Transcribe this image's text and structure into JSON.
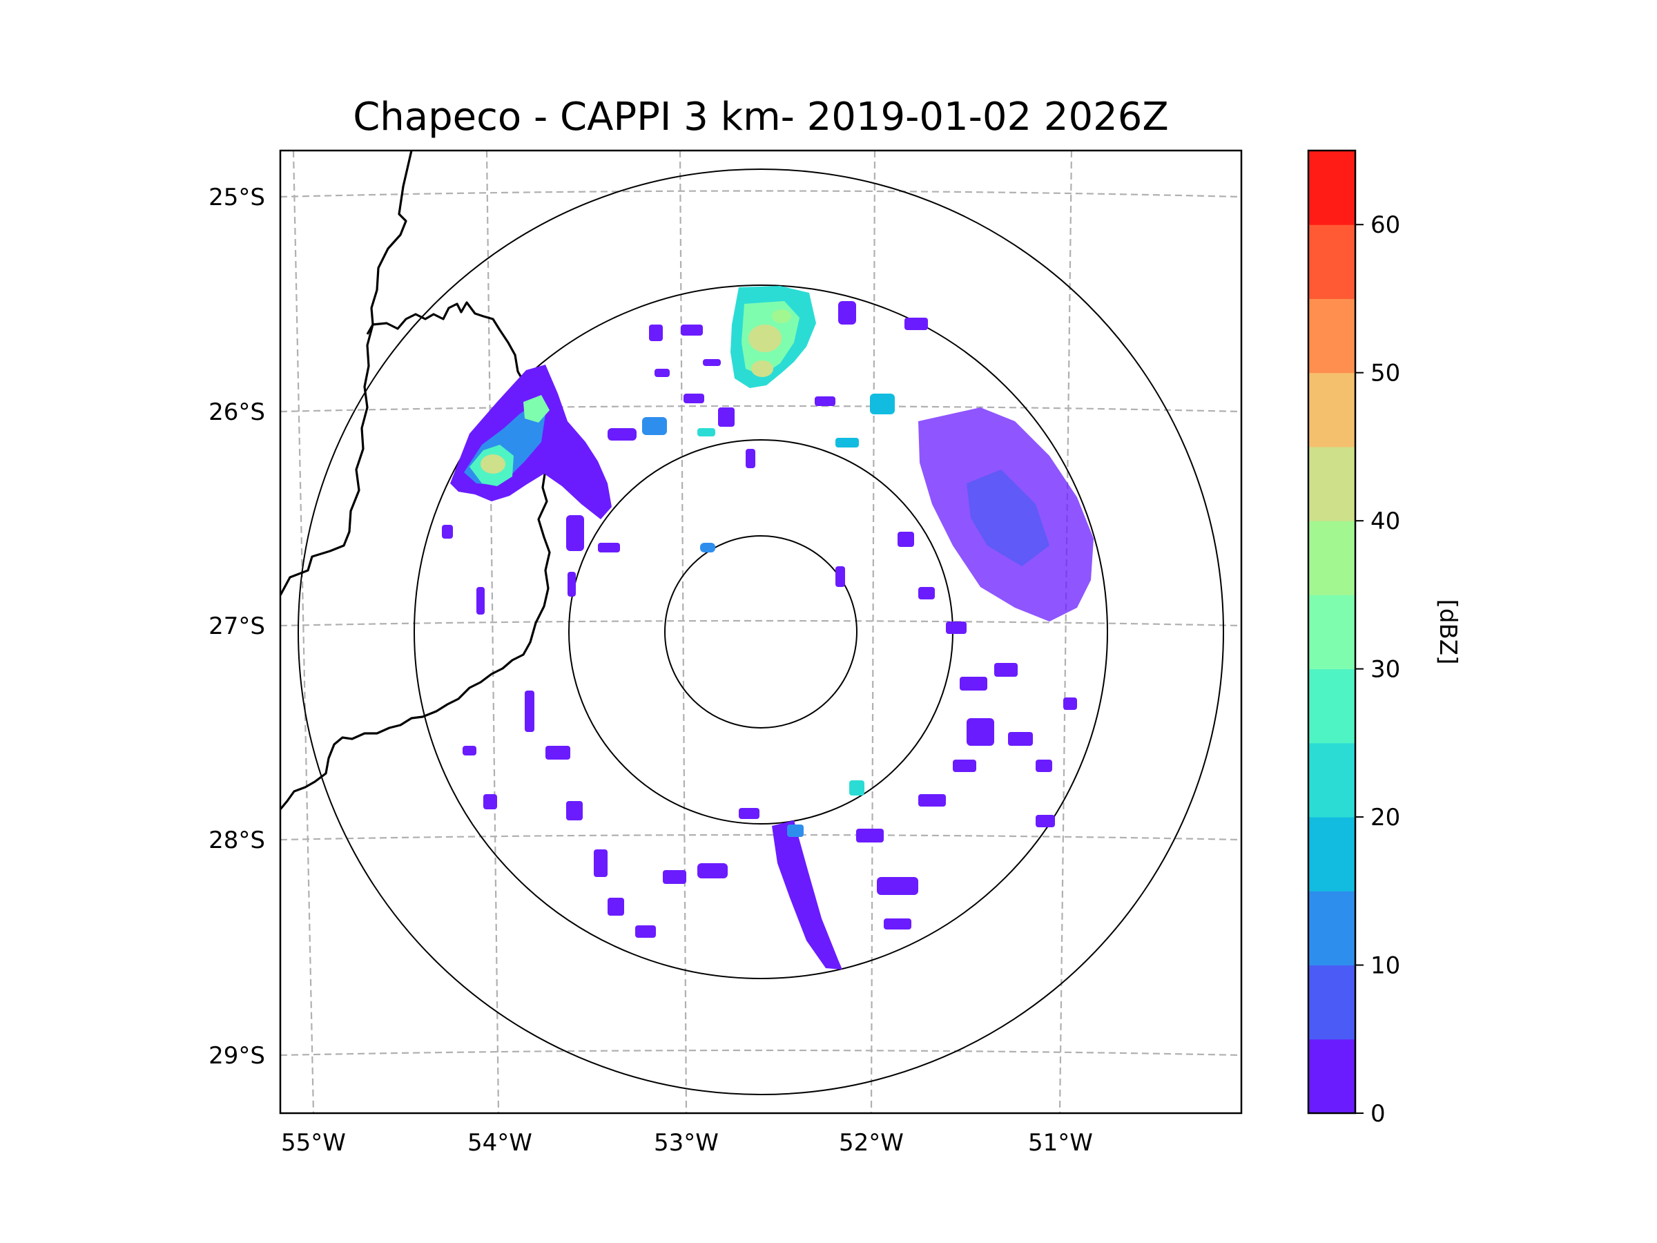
{
  "title": "Chapeco - CAPPI 3 km- 2019-01-02 2026Z",
  "map": {
    "lat_ticks": [
      "25°S",
      "26°S",
      "27°S",
      "28°S",
      "29°S"
    ],
    "lon_ticks": [
      "55°W",
      "54°W",
      "53°W",
      "52°W",
      "51°W"
    ],
    "colors": {
      "frame": "#000000",
      "gridline": "#b0b0b0",
      "range_ring": "#000000",
      "border": "#000000"
    }
  },
  "colorbar": {
    "label": "[dBZ]",
    "ticks": [
      "0",
      "10",
      "20",
      "30",
      "40",
      "50",
      "60"
    ],
    "levels": [
      {
        "from": 0,
        "to": 5,
        "color": "#6a1cff"
      },
      {
        "from": 5,
        "to": 10,
        "color": "#4a5cf5"
      },
      {
        "from": 10,
        "to": 15,
        "color": "#2e8eed"
      },
      {
        "from": 15,
        "to": 20,
        "color": "#11bce0"
      },
      {
        "from": 20,
        "to": 25,
        "color": "#2bdcd5"
      },
      {
        "from": 25,
        "to": 30,
        "color": "#4ff4c4"
      },
      {
        "from": 30,
        "to": 35,
        "color": "#7ffdae"
      },
      {
        "from": 35,
        "to": 40,
        "color": "#a2f791"
      },
      {
        "from": 40,
        "to": 45,
        "color": "#cfe08a"
      },
      {
        "from": 45,
        "to": 50,
        "color": "#f5c06d"
      },
      {
        "from": 50,
        "to": 55,
        "color": "#ff8f4e"
      },
      {
        "from": 55,
        "to": 60,
        "color": "#ff5a34"
      },
      {
        "from": 60,
        "to": 65,
        "color": "#ff1c17"
      }
    ]
  }
}
